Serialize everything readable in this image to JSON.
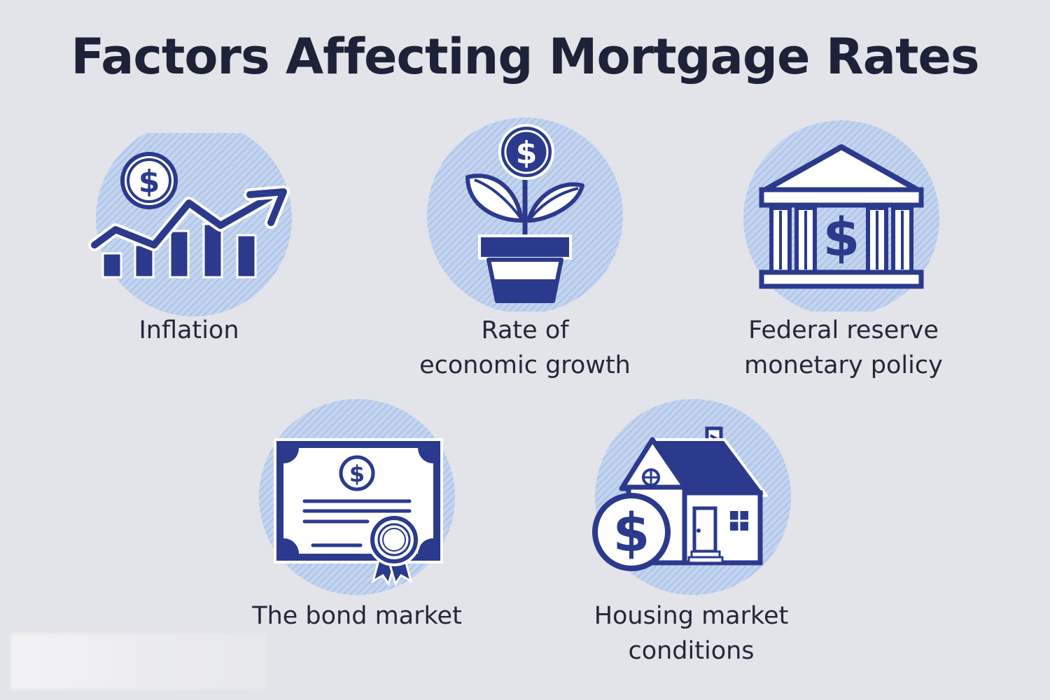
{
  "title": "Factors Affecting Mortgage Rates",
  "colors": {
    "background": "#e3e4e9",
    "navy": "#2b3a8c",
    "circle_light": "#bcd0ee",
    "circle_stripe": "#9fb9e4",
    "text": "#1d2238"
  },
  "factors": [
    {
      "key": "inflation",
      "icon": "rising-chart-icon",
      "lines": [
        "Inflation"
      ]
    },
    {
      "key": "growth",
      "icon": "plant-pot-icon",
      "lines": [
        "Rate of",
        "economic growth"
      ]
    },
    {
      "key": "federal",
      "icon": "bank-building-icon",
      "lines": [
        "Federal reserve",
        "monetary policy"
      ]
    },
    {
      "key": "bond",
      "icon": "certificate-icon",
      "lines": [
        "The bond market"
      ]
    },
    {
      "key": "housing",
      "icon": "house-icon",
      "lines": [
        "Housing market",
        "conditions"
      ]
    }
  ],
  "currency_symbol": "$"
}
